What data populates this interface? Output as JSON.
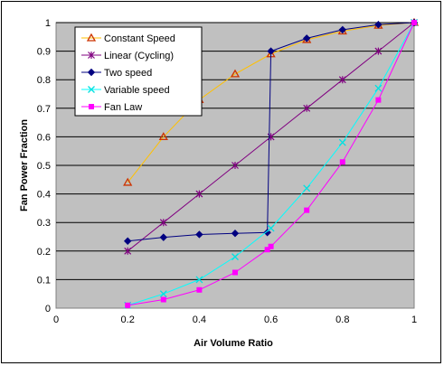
{
  "chart_data": {
    "type": "line",
    "title": "",
    "xlabel": "Air Volume Ratio",
    "ylabel": "Fan Power Fraction",
    "xlim": [
      0,
      1
    ],
    "ylim": [
      0,
      1
    ],
    "xticks": [
      0,
      0.2,
      0.4,
      0.6,
      0.8,
      1
    ],
    "yticks": [
      0,
      0.1,
      0.2,
      0.3,
      0.4,
      0.5,
      0.6,
      0.7,
      0.8,
      0.9,
      1
    ],
    "xtick_labels": [
      "0",
      "0.2",
      "0.4",
      "0.6",
      "0.8",
      "1"
    ],
    "ytick_labels": [
      "0",
      "0.1",
      "0.2",
      "0.3",
      "0.4",
      "0.5",
      "0.6",
      "0.7",
      "0.8",
      "0.9",
      "1"
    ],
    "grid": "horizontal",
    "plot_background": "#c0c0c0",
    "legend_position": "top-left",
    "series": [
      {
        "name": "Constant Speed",
        "color": "#ffc000",
        "marker": "triangle",
        "marker_color": "#cc3300",
        "x": [
          0.2,
          0.3,
          0.4,
          0.5,
          0.6,
          0.7,
          0.8,
          0.9,
          1.0
        ],
        "y": [
          0.44,
          0.6,
          0.73,
          0.82,
          0.89,
          0.94,
          0.97,
          0.99,
          1.0
        ]
      },
      {
        "name": "Linear (Cycling)",
        "color": "#800080",
        "marker": "star",
        "marker_color": "#800080",
        "x": [
          0.2,
          0.3,
          0.4,
          0.5,
          0.6,
          0.7,
          0.8,
          0.9,
          1.0
        ],
        "y": [
          0.2,
          0.3,
          0.4,
          0.5,
          0.6,
          0.7,
          0.8,
          0.9,
          1.0
        ]
      },
      {
        "name": "Two speed",
        "color": "#000080",
        "marker": "diamond",
        "marker_color": "#000080",
        "x": [
          0.2,
          0.3,
          0.4,
          0.5,
          0.59,
          0.6,
          0.7,
          0.8,
          0.9,
          1.0
        ],
        "y": [
          0.235,
          0.248,
          0.258,
          0.262,
          0.265,
          0.9,
          0.945,
          0.975,
          0.993,
          1.0
        ]
      },
      {
        "name": "Variable speed",
        "color": "#00ffff",
        "marker": "x",
        "marker_color": "#00e0e0",
        "x": [
          0.2,
          0.3,
          0.4,
          0.5,
          0.6,
          0.7,
          0.8,
          0.9,
          1.0
        ],
        "y": [
          0.01,
          0.05,
          0.1,
          0.18,
          0.28,
          0.42,
          0.58,
          0.77,
          1.0
        ]
      },
      {
        "name": "Fan Law",
        "color": "#ff00ff",
        "marker": "square",
        "marker_color": "#ff00ff",
        "x": [
          0.2,
          0.3,
          0.4,
          0.5,
          0.59,
          0.6,
          0.7,
          0.8,
          0.9,
          1.0
        ],
        "y": [
          0.01,
          0.03,
          0.064,
          0.125,
          0.205,
          0.216,
          0.343,
          0.512,
          0.729,
          1.0
        ]
      }
    ]
  }
}
